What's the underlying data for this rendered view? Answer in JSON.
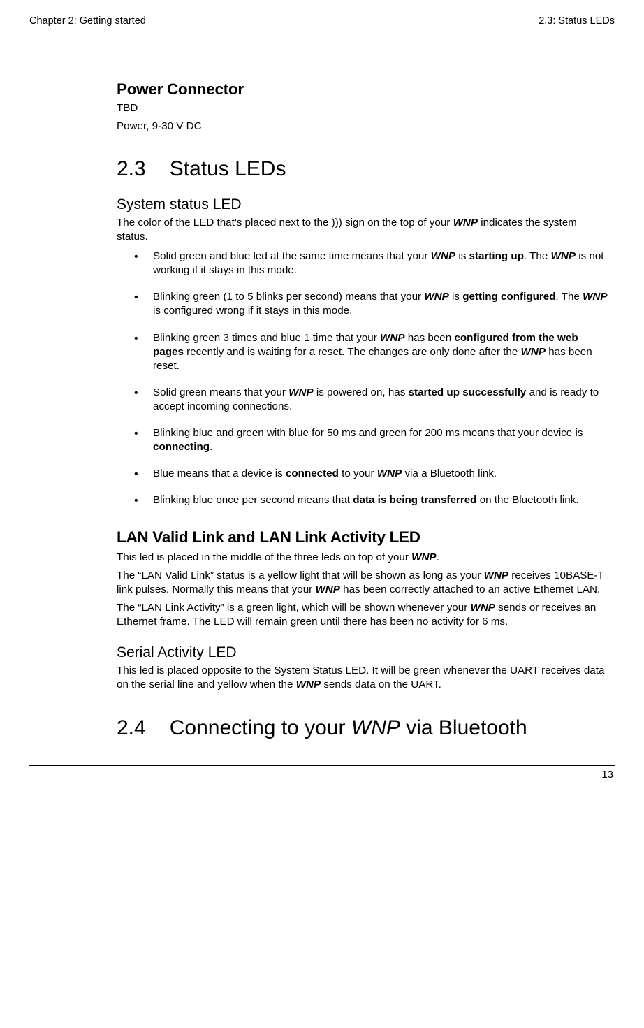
{
  "header": {
    "left": "Chapter 2: Getting started",
    "right": "2.3: Status LEDs"
  },
  "power_connector": {
    "title": "Power Connector",
    "line1": "TBD",
    "line2": "Power, 9-30 V DC"
  },
  "sec23": {
    "num": "2.3",
    "title": "Status LEDs"
  },
  "system_status": {
    "title": "System status LED",
    "intro_a": "The color of the LED that's placed next to the ))) sign on the top of your ",
    "intro_b": " indi­cates the system status.",
    "b1_a": "Solid green and blue led at the same time means that your ",
    "b1_b": " is ",
    "b1_bold": "starting up",
    "b1_c": ". The ",
    "b1_d": " is not working if it stays in this mode.",
    "b2_a": "Blinking green (1 to 5 blinks per second) means that your ",
    "b2_b": " is ",
    "b2_bold": "getting configured",
    "b2_c": ". The ",
    "b2_d": " is configured wrong if it stays in this mode.",
    "b3_a": "Blinking green 3 times and blue 1 time that your ",
    "b3_b": " has been ",
    "b3_bold": "configured from the web pages",
    "b3_c": " recently and is waiting for a reset. The changes are only done after the ",
    "b3_d": " has been reset.",
    "b4_a": "Solid green means that your ",
    "b4_b": " is powered on, has ",
    "b4_bold": "started up success­fully",
    "b4_c": " and is ready to accept incoming connections.",
    "b5_a": "Blinking blue and green with blue for 50 ms and green for 200 ms means that your device is ",
    "b5_bold": "connecting",
    "b5_b": ".",
    "b6_a": "Blue means that a device is ",
    "b6_bold": "connected",
    "b6_b": " to your ",
    "b6_c": " via a Bluetooth link.",
    "b7_a": "Blinking blue once per second means that ",
    "b7_bold": "data is being transferred",
    "b7_b": " on the Bluetooth link."
  },
  "lan": {
    "title": "LAN Valid Link and LAN Link Activity LED",
    "p1_a": "This led is placed in the middle of the three leds on top of your ",
    "p1_b": ".",
    "p2_a": "The “LAN Valid Link” status is a yellow light that will be shown as long as your ",
    "p2_b": " receives 10BASE-T link pulses. Normally this means that your ",
    "p2_c": " has been correctly attached to an active Ethernet LAN.",
    "p3_a": "The “LAN Link Activity” is a green light, which will be shown whenever your ",
    "p3_b": " sends or receives an Ethernet frame. The LED will remain green until there has been no activity for 6 ms."
  },
  "serial": {
    "title": "Serial Activity LED",
    "p_a": "This led is placed opposite to the System Status LED. It will be green whenever the UART receives data on the serial line and yellow when the ",
    "p_b": " sends data on the UART."
  },
  "sec24": {
    "num": "2.4",
    "title_a": "Connecting to your ",
    "title_b": " via Bluetooth"
  },
  "product": "WNP",
  "footer": {
    "page": "13"
  }
}
